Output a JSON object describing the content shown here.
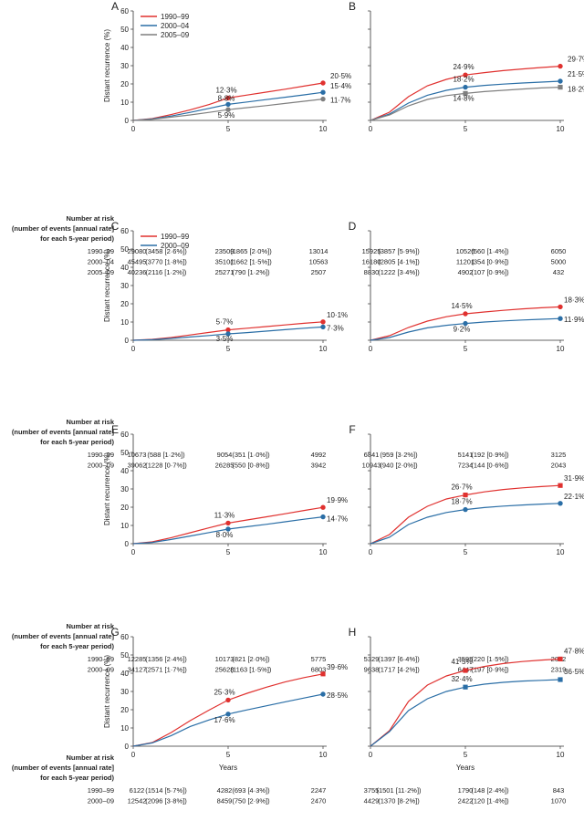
{
  "risk_header": [
    "Number at risk",
    "(number of events [annual rate]",
    "for each 5-year period)"
  ],
  "chart_data": [
    {
      "panel": "A",
      "type": "line",
      "xlabel": "",
      "ylabel": "Distant recurrence (%)",
      "xlim": [
        0,
        10
      ],
      "ylim": [
        0,
        60
      ],
      "x_ticks": [
        "0",
        "5",
        "10"
      ],
      "y_ticks": [
        "0",
        "10",
        "20",
        "30",
        "40",
        "50",
        "60"
      ],
      "legend": true,
      "legend_position": "top-left",
      "series": [
        {
          "name": "1990–99",
          "color": "#e0312f",
          "x": [
            0,
            1,
            2,
            3,
            4,
            5,
            6,
            7,
            8,
            9,
            10
          ],
          "y": [
            0,
            1.0,
            3.2,
            5.8,
            8.7,
            12.3,
            13.9,
            15.5,
            17.1,
            18.8,
            20.5
          ],
          "labels": [
            "12·3%",
            "20·5%"
          ]
        },
        {
          "name": "2000–04",
          "color": "#2a6ea6",
          "x": [
            0,
            1,
            2,
            3,
            4,
            5,
            6,
            7,
            8,
            9,
            10
          ],
          "y": [
            0,
            0.8,
            2.4,
            4.4,
            6.6,
            8.8,
            10.1,
            11.4,
            12.7,
            14.0,
            15.4
          ],
          "labels": [
            "8·8%",
            "15·4%"
          ]
        },
        {
          "name": "2005–09",
          "color": "#7f7f7f",
          "x": [
            0,
            1,
            2,
            3,
            4,
            5,
            6,
            7,
            8,
            9,
            10
          ],
          "y": [
            0,
            0.6,
            1.8,
            3.0,
            4.4,
            5.9,
            7.0,
            8.1,
            9.3,
            10.5,
            11.7
          ],
          "labels": [
            "5·9%",
            "11·7%"
          ]
        }
      ],
      "risk_table": [
        {
          "label": "1990–99",
          "values": [
            "29080",
            "(3458 [2·6%])",
            "23509",
            "(1865 [2·0%])",
            "13014"
          ]
        },
        {
          "label": "2000–04",
          "values": [
            "45495",
            "(3770 [1·8%])",
            "35101",
            "(1662 [1·5%])",
            "10563"
          ]
        },
        {
          "label": "2005–09",
          "values": [
            "40236",
            "(2116 [1·2%])",
            "25271",
            "(790 [1·2%])",
            "2507"
          ]
        }
      ]
    },
    {
      "panel": "B",
      "type": "line",
      "xlabel": "",
      "ylabel": "",
      "xlim": [
        0,
        10
      ],
      "ylim": [
        0,
        60
      ],
      "x_ticks": [
        "0",
        "5",
        "10"
      ],
      "y_ticks": [],
      "legend": false,
      "series": [
        {
          "name": "1990–99",
          "color": "#e0312f",
          "x": [
            0,
            1,
            2,
            3,
            4,
            5,
            6,
            7,
            8,
            9,
            10
          ],
          "y": [
            0,
            4.5,
            13,
            19,
            22.5,
            24.9,
            26.2,
            27.3,
            28.2,
            29.0,
            29.7
          ],
          "labels": [
            "24·9%",
            "29·7%"
          ]
        },
        {
          "name": "2000–04",
          "color": "#2a6ea6",
          "x": [
            0,
            1,
            2,
            3,
            4,
            5,
            6,
            7,
            8,
            9,
            10
          ],
          "y": [
            0,
            3.5,
            9.5,
            13.8,
            16.5,
            18.2,
            19.2,
            19.9,
            20.5,
            21.0,
            21.5
          ],
          "labels": [
            "18·2%",
            "21·5%"
          ]
        },
        {
          "name": "2005–09",
          "color": "#7f7f7f",
          "x": [
            0,
            1,
            2,
            3,
            4,
            5,
            6,
            7,
            8,
            9,
            10
          ],
          "y": [
            0,
            3.0,
            8.0,
            11.5,
            13.6,
            14.8,
            15.8,
            16.5,
            17.2,
            17.8,
            18.2
          ],
          "labels": [
            "14·8%",
            "18·2%"
          ]
        }
      ],
      "risk_table": [
        {
          "label": "1990–99",
          "values": [
            "15925",
            "(3857 [5·9%])",
            "10526",
            "(560 [1·4%])",
            "6050"
          ]
        },
        {
          "label": "2000–04",
          "values": [
            "16180",
            "(2805 [4·1%])",
            "11201",
            "(354 [0·9%])",
            "5000"
          ]
        },
        {
          "label": "2005–09",
          "values": [
            "8830",
            "(1222 [3·4%])",
            "4902",
            "(107 [0·9%])",
            "432"
          ]
        }
      ]
    },
    {
      "panel": "C",
      "type": "line",
      "xlabel": "",
      "ylabel": "Distant recurrence (%)",
      "xlim": [
        0,
        10
      ],
      "ylim": [
        0,
        60
      ],
      "x_ticks": [
        "0",
        "5",
        "10"
      ],
      "y_ticks": [
        "0",
        "10",
        "20",
        "30",
        "40",
        "50",
        "60"
      ],
      "legend": true,
      "legend_position": "top-left",
      "series": [
        {
          "name": "1990–99",
          "color": "#e0312f",
          "x": [
            0,
            1,
            2,
            3,
            4,
            5,
            6,
            7,
            8,
            9,
            10
          ],
          "y": [
            0,
            0.5,
            1.5,
            2.9,
            4.3,
            5.7,
            6.6,
            7.5,
            8.4,
            9.3,
            10.1
          ],
          "labels": [
            "5·7%",
            "10·1%"
          ]
        },
        {
          "name": "2000–09",
          "color": "#2a6ea6",
          "x": [
            0,
            1,
            2,
            3,
            4,
            5,
            6,
            7,
            8,
            9,
            10
          ],
          "y": [
            0,
            0.3,
            1.0,
            1.8,
            2.6,
            3.5,
            4.2,
            5.0,
            5.8,
            6.6,
            7.3
          ],
          "labels": [
            "3·5%",
            "7·3%"
          ]
        }
      ],
      "risk_table": [
        {
          "label": "1990–99",
          "values": [
            "10673",
            "(588 [1·2%])",
            "9054",
            "(351 [1·0%])",
            "4992"
          ]
        },
        {
          "label": "2000–09",
          "values": [
            "39062",
            "(1228 [0·7%])",
            "26285",
            "(550 [0·8%])",
            "3942"
          ]
        }
      ]
    },
    {
      "panel": "D",
      "type": "line",
      "xlabel": "",
      "ylabel": "",
      "xlim": [
        0,
        10
      ],
      "ylim": [
        0,
        60
      ],
      "x_ticks": [
        "0",
        "5",
        "10"
      ],
      "y_ticks": [],
      "legend": false,
      "series": [
        {
          "name": "1990–99",
          "color": "#e0312f",
          "x": [
            0,
            1,
            2,
            3,
            4,
            5,
            6,
            7,
            8,
            9,
            10
          ],
          "y": [
            0,
            2.5,
            7.0,
            10.5,
            12.9,
            14.5,
            15.5,
            16.4,
            17.2,
            17.8,
            18.3
          ],
          "labels": [
            "14·5%",
            "18·3%"
          ]
        },
        {
          "name": "2000–09",
          "color": "#2a6ea6",
          "x": [
            0,
            1,
            2,
            3,
            4,
            5,
            6,
            7,
            8,
            9,
            10
          ],
          "y": [
            0,
            1.5,
            4.5,
            6.8,
            8.2,
            9.2,
            10.0,
            10.6,
            11.1,
            11.5,
            11.9
          ],
          "labels": [
            "9·2%",
            "11·9%"
          ]
        }
      ],
      "risk_table": [
        {
          "label": "1990–99",
          "values": [
            "6841",
            "(959 [3·2%])",
            "5141",
            "(192 [0·9%])",
            "3125"
          ]
        },
        {
          "label": "2000–09",
          "values": [
            "10943",
            "(940 [2·0%])",
            "7234",
            "(144 [0·6%])",
            "2043"
          ]
        }
      ]
    },
    {
      "panel": "E",
      "type": "line",
      "xlabel": "",
      "ylabel": "Distant recurrence (%)",
      "xlim": [
        0,
        10
      ],
      "ylim": [
        0,
        60
      ],
      "x_ticks": [
        "0",
        "5",
        "10"
      ],
      "y_ticks": [
        "0",
        "10",
        "20",
        "30",
        "40",
        "50",
        "60"
      ],
      "legend": false,
      "series": [
        {
          "name": "1990–99",
          "color": "#e0312f",
          "x": [
            0,
            1,
            2,
            3,
            4,
            5,
            6,
            7,
            8,
            9,
            10
          ],
          "y": [
            0,
            1.0,
            3.3,
            6.0,
            8.7,
            11.3,
            13.0,
            14.7,
            16.4,
            18.2,
            19.9
          ],
          "labels": [
            "11·3%",
            "19·9%"
          ]
        },
        {
          "name": "2000–09",
          "color": "#2a6ea6",
          "x": [
            0,
            1,
            2,
            3,
            4,
            5,
            6,
            7,
            8,
            9,
            10
          ],
          "y": [
            0,
            0.7,
            2.3,
            4.2,
            6.1,
            8.0,
            9.3,
            10.6,
            12.0,
            13.4,
            14.7
          ],
          "labels": [
            "8·0%",
            "14·7%"
          ]
        }
      ],
      "risk_table": [
        {
          "label": "1990–99",
          "values": [
            "12285",
            "(1356 [2·4%])",
            "10173",
            "(821 [2·0%])",
            "5775"
          ]
        },
        {
          "label": "2000–09",
          "values": [
            "34127",
            "(2571 [1·7%])",
            "25628",
            "(1163 [1·5%])",
            "6803"
          ]
        }
      ]
    },
    {
      "panel": "F",
      "type": "line",
      "xlabel": "",
      "ylabel": "",
      "xlim": [
        0,
        10
      ],
      "ylim": [
        0,
        60
      ],
      "x_ticks": [
        "0",
        "5",
        "10"
      ],
      "y_ticks": [],
      "legend": false,
      "series": [
        {
          "name": "1990–99",
          "color": "#e0312f",
          "x": [
            0,
            1,
            2,
            3,
            4,
            5,
            6,
            7,
            8,
            9,
            10
          ],
          "y": [
            0,
            5.0,
            14.5,
            20.5,
            24.5,
            26.7,
            28.4,
            29.7,
            30.6,
            31.3,
            31.9
          ],
          "labels": [
            "26·7%",
            "31·9%"
          ]
        },
        {
          "name": "2000–09",
          "color": "#2a6ea6",
          "x": [
            0,
            1,
            2,
            3,
            4,
            5,
            6,
            7,
            8,
            9,
            10
          ],
          "y": [
            0,
            3.5,
            10.5,
            14.5,
            17.1,
            18.7,
            19.8,
            20.6,
            21.2,
            21.7,
            22.1
          ],
          "labels": [
            "18·7%",
            "22·1%"
          ]
        }
      ],
      "risk_table": [
        {
          "label": "1990–99",
          "values": [
            "5329",
            "(1397 [6·4%])",
            "3595",
            "(220 [1·5%])",
            "2082"
          ]
        },
        {
          "label": "2000–09",
          "values": [
            "9638",
            "(1717 [4·2%])",
            "6447",
            "(197 [0·9%])",
            "2319"
          ]
        }
      ]
    },
    {
      "panel": "G",
      "type": "line",
      "xlabel": "Years",
      "ylabel": "Distant recurrence (%)",
      "xlim": [
        0,
        10
      ],
      "ylim": [
        0,
        60
      ],
      "x_ticks": [
        "0",
        "5",
        "10"
      ],
      "y_ticks": [
        "0",
        "10",
        "20",
        "30",
        "40",
        "50",
        "60"
      ],
      "legend": false,
      "series": [
        {
          "name": "1990–99",
          "color": "#e0312f",
          "x": [
            0,
            1,
            2,
            3,
            4,
            5,
            6,
            7,
            8,
            9,
            10
          ],
          "y": [
            0,
            2.0,
            7.5,
            14.0,
            19.8,
            25.3,
            29.0,
            32.3,
            35.2,
            37.6,
            39.6
          ],
          "labels": [
            "25·3%",
            "39·6%"
          ]
        },
        {
          "name": "2000–09",
          "color": "#2a6ea6",
          "x": [
            0,
            1,
            2,
            3,
            4,
            5,
            6,
            7,
            8,
            9,
            10
          ],
          "y": [
            0,
            1.8,
            5.8,
            10.8,
            14.4,
            17.6,
            19.9,
            22.1,
            24.3,
            26.4,
            28.5
          ],
          "labels": [
            "17·6%",
            "28·5%"
          ]
        }
      ],
      "risk_table": [
        {
          "label": "1990–99",
          "values": [
            "6122",
            "(1514 [5·7%])",
            "4282",
            "(693 [4·3%])",
            "2247"
          ]
        },
        {
          "label": "2000–09",
          "values": [
            "12542",
            "(2096 [3·8%])",
            "8459",
            "(750 [2·9%])",
            "2470"
          ]
        }
      ]
    },
    {
      "panel": "H",
      "type": "line",
      "xlabel": "Years",
      "ylabel": "",
      "xlim": [
        0,
        10
      ],
      "ylim": [
        0,
        60
      ],
      "x_ticks": [
        "0",
        "5",
        "10"
      ],
      "y_ticks": [],
      "legend": false,
      "series": [
        {
          "name": "1990–99",
          "color": "#e0312f",
          "x": [
            0,
            1,
            2,
            3,
            4,
            5,
            6,
            7,
            8,
            9,
            10
          ],
          "y": [
            0,
            8.5,
            24.5,
            33.5,
            38.5,
            41.5,
            43.7,
            45.3,
            46.4,
            47.2,
            47.8
          ],
          "labels": [
            "41·5%",
            "47·8%"
          ]
        },
        {
          "name": "2000–09",
          "color": "#2a6ea6",
          "x": [
            0,
            1,
            2,
            3,
            4,
            5,
            6,
            7,
            8,
            9,
            10
          ],
          "y": [
            0,
            8.0,
            19.5,
            26.0,
            30.0,
            32.4,
            34.0,
            35.0,
            35.7,
            36.1,
            36.5
          ],
          "labels": [
            "32·4%",
            "36·5%"
          ]
        }
      ],
      "risk_table": [
        {
          "label": "1990–99",
          "values": [
            "3755",
            "(1501 [11·2%])",
            "1790",
            "(148 [2·4%])",
            "843"
          ]
        },
        {
          "label": "2000–09",
          "values": [
            "4429",
            "(1370 [8·2%])",
            "2422",
            "(120 [1·4%])",
            "1070"
          ]
        }
      ]
    }
  ]
}
